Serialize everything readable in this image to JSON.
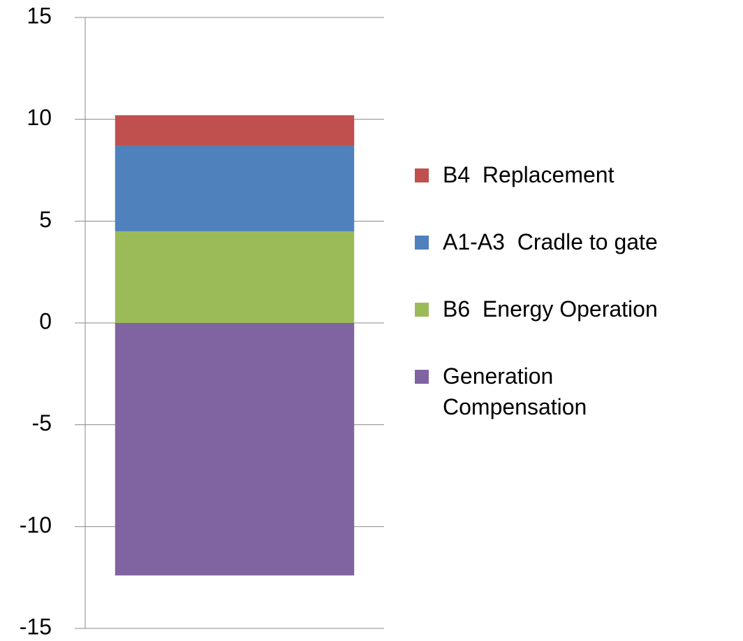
{
  "chart_data": {
    "type": "stacked_bar",
    "categories": [
      null
    ],
    "series": [
      {
        "name": "B4  Replacement",
        "color": "#c0504d",
        "values": [
          1.5
        ]
      },
      {
        "name": "A1-A3  Cradle to gate",
        "color": "#4f81bd",
        "values": [
          4.2
        ]
      },
      {
        "name": "B6  Energy Operation",
        "color": "#9bbb59",
        "values": [
          4.5
        ]
      },
      {
        "name": "Generation Compensation",
        "color": "#8064a2",
        "values": [
          -12.4
        ]
      }
    ],
    "ylim": [
      -15,
      15
    ],
    "yticks": [
      -15,
      -10,
      -5,
      0,
      5,
      10,
      15
    ],
    "grid": true,
    "legend": "right"
  }
}
